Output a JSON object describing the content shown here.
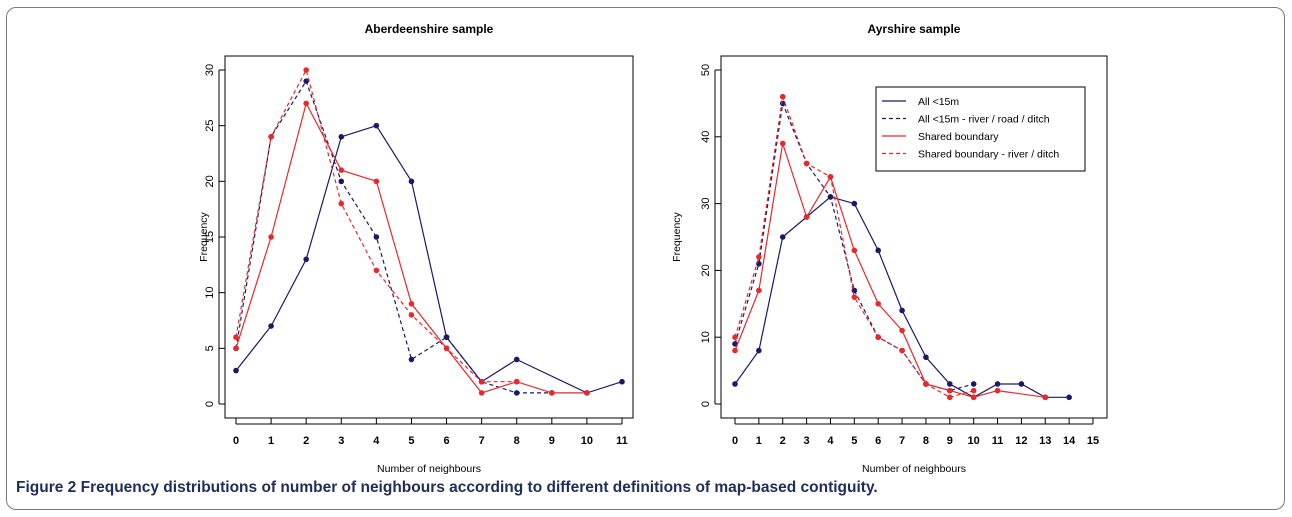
{
  "caption": {
    "label": "Figure 2",
    "text": " Frequency distributions of number of neighbours according to different definitions of map-based contiguity."
  },
  "colors": {
    "navy": "#1a1a66",
    "red": "#e8282b"
  },
  "chart_data": [
    {
      "type": "line",
      "title": "Aberdeenshire sample",
      "xlabel": "Number of neighbours",
      "ylabel": "Frequency",
      "xlim": [
        0,
        11
      ],
      "ylim": [
        0,
        30
      ],
      "xticks": [
        "0",
        "1",
        "2",
        "3",
        "4",
        "5",
        "6",
        "7",
        "8",
        "9",
        "10",
        "11"
      ],
      "yticks": [
        "0",
        "5",
        "10",
        "15",
        "20",
        "25",
        "30"
      ],
      "legend": null,
      "series": [
        {
          "style": "navy-solid",
          "x": [
            0,
            1,
            2,
            3,
            4,
            5,
            6,
            7,
            8,
            10,
            11
          ],
          "y": [
            3,
            7,
            13,
            24,
            25,
            20,
            6,
            2,
            4,
            1,
            2
          ]
        },
        {
          "style": "navy-dashed",
          "x": [
            0,
            1,
            2,
            3,
            4,
            5,
            6,
            7,
            8,
            9
          ],
          "y": [
            5,
            24,
            29,
            20,
            15,
            4,
            6,
            2,
            1,
            1
          ]
        },
        {
          "style": "red-solid",
          "x": [
            0,
            1,
            2,
            3,
            4,
            5,
            6,
            7,
            8,
            9,
            10
          ],
          "y": [
            5,
            15,
            27,
            21,
            20,
            9,
            5,
            1,
            2,
            1,
            1
          ]
        },
        {
          "style": "red-dashed",
          "x": [
            0,
            1,
            2,
            3,
            4,
            5,
            6,
            7,
            8
          ],
          "y": [
            6,
            24,
            30,
            18,
            12,
            8,
            5,
            2,
            2
          ]
        }
      ]
    },
    {
      "type": "line",
      "title": "Ayrshire sample",
      "xlabel": "Number of neighbours",
      "ylabel": "Frequency",
      "xlim": [
        0,
        15
      ],
      "ylim": [
        0,
        50
      ],
      "xticks": [
        "0",
        "1",
        "2",
        "3",
        "4",
        "5",
        "6",
        "7",
        "8",
        "9",
        "10",
        "11",
        "12",
        "13",
        "14",
        "15"
      ],
      "yticks": [
        "0",
        "10",
        "20",
        "30",
        "40",
        "50"
      ],
      "legend": {
        "position": "top-right",
        "entries": [
          "All <15m",
          "All <15m - river / road / ditch",
          "Shared boundary",
          "Shared boundary - river / ditch"
        ]
      },
      "series": [
        {
          "name": "All <15m",
          "style": "navy-solid",
          "x": [
            0,
            1,
            2,
            3,
            4,
            5,
            6,
            7,
            8,
            9,
            10,
            11,
            12,
            13,
            14
          ],
          "y": [
            3,
            8,
            25,
            28,
            31,
            30,
            23,
            14,
            7,
            3,
            1,
            3,
            3,
            1,
            1
          ]
        },
        {
          "name": "All <15m - river / road / ditch",
          "style": "navy-dashed",
          "x": [
            0,
            1,
            2,
            3,
            4,
            5,
            6,
            7,
            8,
            9,
            10
          ],
          "y": [
            9,
            21,
            45,
            36,
            31,
            17,
            10,
            8,
            3,
            2,
            3
          ]
        },
        {
          "name": "Shared boundary",
          "style": "red-solid",
          "x": [
            0,
            1,
            2,
            3,
            4,
            5,
            6,
            7,
            8,
            9,
            10,
            11,
            13
          ],
          "y": [
            8,
            17,
            39,
            28,
            34,
            23,
            15,
            11,
            3,
            2,
            1,
            2,
            1
          ]
        },
        {
          "name": "Shared boundary - river / ditch",
          "style": "red-dashed",
          "x": [
            0,
            1,
            2,
            3,
            4,
            5,
            6,
            7,
            8,
            9,
            10
          ],
          "y": [
            10,
            22,
            46,
            36,
            34,
            16,
            10,
            8,
            3,
            1,
            2
          ]
        }
      ]
    }
  ]
}
